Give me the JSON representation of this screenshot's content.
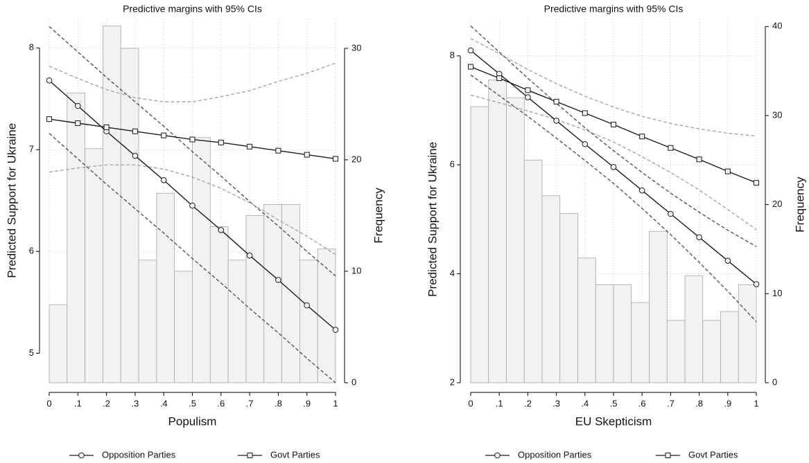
{
  "chart_data": [
    {
      "type": "line",
      "title": "Predictive margins with 95% CIs",
      "xlabel": "Populism",
      "ylabel": "Predicted Support for Ukraine",
      "y2label": "Frequency",
      "x": [
        0,
        0.1,
        0.2,
        0.3,
        0.4,
        0.5,
        0.6,
        0.7,
        0.8,
        0.9,
        1
      ],
      "xlim": [
        0,
        1
      ],
      "xticks": [
        0,
        {
          "value": 0.1,
          "label": ".1"
        },
        {
          "value": 0.2,
          "label": ".2"
        },
        {
          "value": 0.3,
          "label": ".3"
        },
        {
          "value": 0.4,
          "label": ".4"
        },
        {
          "value": 0.5,
          "label": ".5"
        },
        {
          "value": 0.6,
          "label": ".6"
        },
        {
          "value": 0.7,
          "label": ".7"
        },
        {
          "value": 0.8,
          "label": ".8"
        },
        {
          "value": 0.9,
          "label": ".9"
        },
        1
      ],
      "ylim": [
        4.71,
        8.28
      ],
      "yticks": [
        5,
        6,
        7,
        8
      ],
      "y2lim": [
        0,
        32.6
      ],
      "y2ticks": [
        0,
        10,
        20,
        30
      ],
      "grid": true,
      "histogram": {
        "axis": "y2",
        "color": "#f2f2f2",
        "edge_color": "#a6a6a6",
        "bins": [
          0,
          0.0625,
          0.125,
          0.1875,
          0.25,
          0.3125,
          0.375,
          0.4375,
          0.5,
          0.5625,
          0.625,
          0.6875,
          0.75,
          0.8125,
          0.875,
          0.9375,
          1
        ],
        "counts": [
          7,
          26,
          21,
          32,
          30,
          11,
          17,
          10,
          22,
          14,
          11,
          15,
          16,
          16,
          11,
          12
        ]
      },
      "series": [
        {
          "name": "Opposition Parties",
          "color": "#1a1a1a",
          "marker": "circle",
          "ci_color": "#555555",
          "values": [
            7.68,
            7.43,
            7.18,
            6.94,
            6.7,
            6.45,
            6.21,
            5.96,
            5.72,
            5.47,
            5.23
          ],
          "upper": [
            8.21,
            7.96,
            7.71,
            7.47,
            7.23,
            6.98,
            6.74,
            6.49,
            6.25,
            6.0,
            5.76
          ],
          "lower": [
            7.16,
            6.91,
            6.66,
            6.42,
            6.18,
            5.93,
            5.69,
            5.44,
            5.2,
            4.95,
            4.71
          ]
        },
        {
          "name": "Govt Parties",
          "color": "#1a1a1a",
          "marker": "square",
          "ci_color": "#a6a6a6",
          "values": [
            7.3,
            7.26,
            7.22,
            7.18,
            7.14,
            7.1,
            7.07,
            7.03,
            6.99,
            6.95,
            6.91
          ],
          "upper": [
            7.82,
            7.7,
            7.59,
            7.51,
            7.47,
            7.47,
            7.52,
            7.58,
            7.67,
            7.75,
            7.85
          ],
          "lower": [
            6.78,
            6.82,
            6.85,
            6.85,
            6.81,
            6.73,
            6.62,
            6.48,
            6.31,
            6.15,
            5.97
          ]
        }
      ]
    },
    {
      "type": "line",
      "title": "Predictive margins with 95% CIs",
      "xlabel": "EU Skepticism",
      "ylabel": "Predicted Support for Ukraine",
      "y2label": "Frequency",
      "x": [
        0,
        0.1,
        0.2,
        0.3,
        0.4,
        0.5,
        0.6,
        0.7,
        0.8,
        0.9,
        1
      ],
      "xlim": [
        0,
        1
      ],
      "xticks": [
        0,
        {
          "value": 0.1,
          "label": ".1"
        },
        {
          "value": 0.2,
          "label": ".2"
        },
        {
          "value": 0.3,
          "label": ".3"
        },
        {
          "value": 0.4,
          "label": ".4"
        },
        {
          "value": 0.5,
          "label": ".5"
        },
        {
          "value": 0.6,
          "label": ".6"
        },
        {
          "value": 0.7,
          "label": ".7"
        },
        {
          "value": 0.8,
          "label": ".8"
        },
        {
          "value": 0.9,
          "label": ".9"
        },
        1
      ],
      "ylim": [
        2,
        8.67
      ],
      "yticks": [
        2,
        4,
        6,
        8
      ],
      "y2lim": [
        0,
        40.8
      ],
      "y2ticks": [
        0,
        10,
        20,
        30,
        40
      ],
      "grid": true,
      "histogram": {
        "axis": "y2",
        "color": "#f2f2f2",
        "edge_color": "#a6a6a6",
        "bins": [
          0,
          0.0625,
          0.125,
          0.1875,
          0.25,
          0.3125,
          0.375,
          0.4375,
          0.5,
          0.5625,
          0.625,
          0.6875,
          0.75,
          0.8125,
          0.875,
          0.9375,
          1
        ],
        "counts": [
          31,
          34,
          32,
          25,
          21,
          19,
          14,
          11,
          11,
          9,
          17,
          7,
          12,
          7,
          8,
          11
        ]
      },
      "series": [
        {
          "name": "Opposition Parties",
          "color": "#1a1a1a",
          "marker": "circle",
          "ci_color": "#555555",
          "values": [
            8.1,
            7.67,
            7.24,
            6.81,
            6.38,
            5.96,
            5.53,
            5.1,
            4.67,
            4.24,
            3.81
          ],
          "upper": [
            8.55,
            8.07,
            7.59,
            7.13,
            6.68,
            6.26,
            5.86,
            5.48,
            5.13,
            4.8,
            4.5
          ],
          "lower": [
            7.65,
            7.27,
            6.89,
            6.49,
            6.08,
            5.66,
            5.2,
            4.72,
            4.21,
            3.68,
            3.12
          ]
        },
        {
          "name": "Govt Parties",
          "color": "#1a1a1a",
          "marker": "square",
          "ci_color": "#a6a6a6",
          "values": [
            7.8,
            7.59,
            7.37,
            7.16,
            6.95,
            6.74,
            6.52,
            6.31,
            6.1,
            5.88,
            5.67
          ],
          "upper": [
            8.32,
            8.04,
            7.75,
            7.49,
            7.26,
            7.06,
            6.89,
            6.76,
            6.66,
            6.58,
            6.53
          ],
          "lower": [
            7.28,
            7.14,
            6.99,
            6.83,
            6.64,
            6.42,
            6.15,
            5.86,
            5.54,
            5.18,
            4.81
          ]
        }
      ]
    }
  ]
}
